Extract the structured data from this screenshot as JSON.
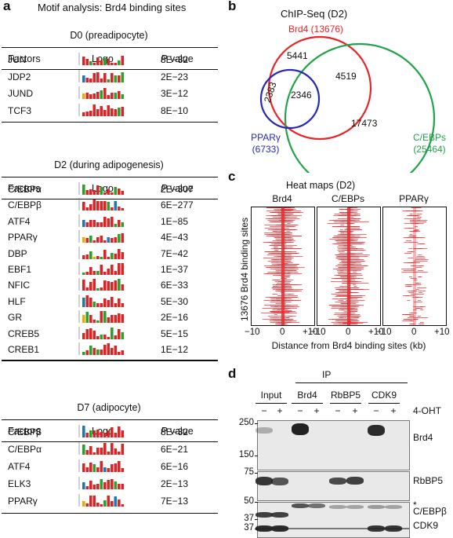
{
  "panel_a": {
    "letter": "a",
    "title": "Motif analysis: Brd4 binding sites",
    "col_factors": "Factors",
    "col_logo": "Logo",
    "col_p_italic": "P",
    "col_p_rest": " value",
    "sections": [
      {
        "title": "D0 (preadipocyte)",
        "rows": [
          {
            "factor": "JUN",
            "p": "8E−32"
          },
          {
            "factor": "JDP2",
            "p": "2E−23"
          },
          {
            "factor": "JUND",
            "p": "3E−12"
          },
          {
            "factor": "TCF3",
            "p": "8E−10"
          }
        ]
      },
      {
        "title": "D2 (during adipogenesis)",
        "rows": [
          {
            "factor": "C/EBPα",
            "p": "2E−307"
          },
          {
            "factor": "C/EBPβ",
            "p": "6E−277"
          },
          {
            "factor": "ATF4",
            "p": "1E−85"
          },
          {
            "factor": "PPARγ",
            "p": "4E−43"
          },
          {
            "factor": "DBP",
            "p": "7E−42"
          },
          {
            "factor": "EBF1",
            "p": "1E−37"
          },
          {
            "factor": "NFIC",
            "p": "6E−33"
          },
          {
            "factor": "HLF",
            "p": "5E−30"
          },
          {
            "factor": "GR",
            "p": "2E−16"
          },
          {
            "factor": "CREB5",
            "p": "5E−15"
          },
          {
            "factor": "CREB1",
            "p": "1E−12"
          }
        ]
      },
      {
        "title": "D7 (adipocyte)",
        "rows": [
          {
            "factor": "C/EBPβ",
            "p": "8E−32"
          },
          {
            "factor": "C/EBPα",
            "p": "6E−21"
          },
          {
            "factor": "ATF4",
            "p": "6E−16"
          },
          {
            "factor": "ELK3",
            "p": "2E−13"
          },
          {
            "factor": "PPARγ",
            "p": "7E−13"
          }
        ]
      }
    ]
  },
  "panel_b": {
    "letter": "b",
    "title": "ChIP-Seq (D2)",
    "brd4_label": "Brd4 (13676)",
    "ppar_label_1": "PPARγ",
    "ppar_label_2": "(6733)",
    "cebp_label_1": "C/EBPs",
    "cebp_label_2": "(25464)",
    "brd4_only": "5441",
    "brd4_cebp": "4519",
    "ppar_only": "2383",
    "triple": "2346",
    "cebp_only": "17473",
    "colors": {
      "brd4": "#e8262a",
      "ppar": "#2828b4",
      "cebp": "#22a24a"
    }
  },
  "panel_c": {
    "letter": "c",
    "title": "Heat maps (D2)",
    "maps": [
      "Brd4",
      "C/EBPs",
      "PPARγ"
    ],
    "ylabel": "13676 Brd4 binding sites",
    "ticks": [
      "−10",
      "0",
      "+10"
    ],
    "xlabel": "Distance from Brd4 binding sites (kb)",
    "color": "#e8262a"
  },
  "panel_d": {
    "letter": "d",
    "ip_label": "IP",
    "groups": [
      "Input",
      "Brd4",
      "RbBP5",
      "CDK9"
    ],
    "minus": "−",
    "plus": "+",
    "treatment": "4-OHT",
    "blots": [
      {
        "name": "Brd4",
        "markers": [
          "250",
          "150"
        ]
      },
      {
        "name": "RbBP5",
        "markers": [
          "75"
        ]
      },
      {
        "name": "C/EBPβ",
        "markers": [
          "50",
          "37"
        ],
        "asterisk": "*"
      },
      {
        "name": "CDK9",
        "markers": [
          "37"
        ]
      }
    ]
  }
}
